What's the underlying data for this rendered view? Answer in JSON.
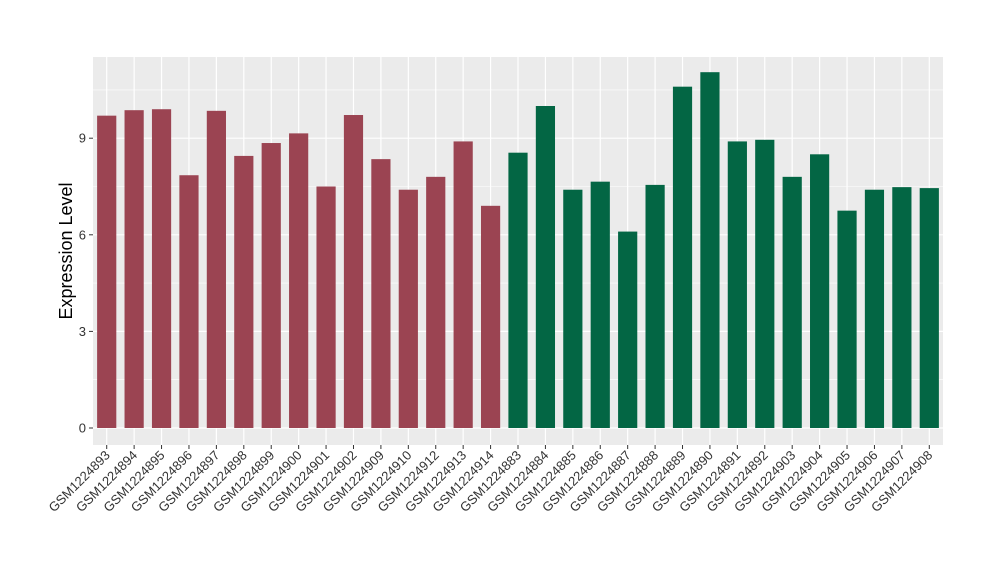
{
  "chart_data": {
    "type": "bar",
    "title": "",
    "xlabel": "",
    "ylabel": "Expression Level",
    "ylim": [
      0,
      11.5
    ],
    "yticks": [
      0,
      3,
      6,
      9
    ],
    "grid": true,
    "colors": {
      "group1": "#9b4452",
      "group2": "#036644",
      "panel": "#ebebeb",
      "grid": "#ffffff"
    },
    "categories": [
      "GSM1224893",
      "GSM1224894",
      "GSM1224895",
      "GSM1224896",
      "GSM1224897",
      "GSM1224898",
      "GSM1224899",
      "GSM1224900",
      "GSM1224901",
      "GSM1224902",
      "GSM1224909",
      "GSM1224910",
      "GSM1224912",
      "GSM1224913",
      "GSM1224914",
      "GSM1224883",
      "GSM1224884",
      "GSM1224885",
      "GSM1224886",
      "GSM1224887",
      "GSM1224888",
      "GSM1224889",
      "GSM1224890",
      "GSM1224891",
      "GSM1224892",
      "GSM1224903",
      "GSM1224904",
      "GSM1224905",
      "GSM1224906",
      "GSM1224907",
      "GSM1224908"
    ],
    "values": [
      9.7,
      9.87,
      9.9,
      7.85,
      9.85,
      8.45,
      8.85,
      9.15,
      7.5,
      9.72,
      8.35,
      7.4,
      7.8,
      8.9,
      6.9,
      8.55,
      10.0,
      7.4,
      7.65,
      6.1,
      7.55,
      10.6,
      11.05,
      8.9,
      8.95,
      7.8,
      8.5,
      6.75,
      7.4,
      7.48,
      7.45
    ],
    "groups": [
      1,
      1,
      1,
      1,
      1,
      1,
      1,
      1,
      1,
      1,
      1,
      1,
      1,
      1,
      1,
      2,
      2,
      2,
      2,
      2,
      2,
      2,
      2,
      2,
      2,
      2,
      2,
      2,
      2,
      2,
      2
    ]
  }
}
